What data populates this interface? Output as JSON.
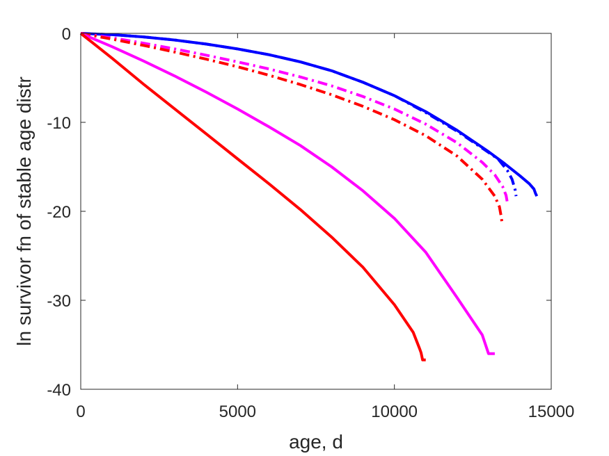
{
  "chart_data": {
    "type": "line",
    "title": "",
    "xlabel": "age, d",
    "ylabel": "ln survivor fn of stable age distr",
    "xlim": [
      0,
      15000
    ],
    "ylim": [
      -40,
      0
    ],
    "xticks": [
      0,
      5000,
      10000,
      15000
    ],
    "yticks": [
      0,
      -10,
      -20,
      -30,
      -40
    ],
    "xtick_labels": [
      "0",
      "5000",
      "10000",
      "15000"
    ],
    "ytick_labels": [
      "0",
      "-10",
      "-20",
      "-30",
      "-40"
    ],
    "grid": false,
    "box": true,
    "legend": "none",
    "series": [
      {
        "color": "#0000ff",
        "style": "solid",
        "x": [
          0,
          1000,
          2000,
          3000,
          4000,
          5000,
          6000,
          7000,
          8000,
          9000,
          10000,
          11000,
          12000,
          13000,
          13500,
          14000,
          14300,
          14450,
          14500,
          14540
        ],
        "y": [
          0,
          -0.15,
          -0.4,
          -0.75,
          -1.2,
          -1.75,
          -2.4,
          -3.2,
          -4.2,
          -5.5,
          -7.0,
          -8.8,
          -10.9,
          -13.3,
          -14.6,
          -16.0,
          -16.9,
          -17.5,
          -18.0,
          -18.3
        ]
      },
      {
        "color": "#0000ff",
        "style": "dashdot",
        "x": [
          0,
          1000,
          2000,
          3000,
          4000,
          5000,
          6000,
          7000,
          8000,
          9000,
          10000,
          11000,
          12000,
          12800,
          13300,
          13600,
          13750,
          13850,
          13880
        ],
        "y": [
          0,
          -0.15,
          -0.4,
          -0.75,
          -1.2,
          -1.75,
          -2.4,
          -3.2,
          -4.2,
          -5.5,
          -7.0,
          -8.9,
          -11.0,
          -12.9,
          -14.1,
          -15.4,
          -16.4,
          -17.6,
          -18.3
        ]
      },
      {
        "color": "#ff00ff",
        "style": "dashdot",
        "x": [
          0,
          1000,
          2000,
          3000,
          4000,
          5000,
          6000,
          7000,
          8000,
          9000,
          10000,
          11000,
          12000,
          12800,
          13200,
          13450,
          13560,
          13600
        ],
        "y": [
          0,
          -0.5,
          -1.1,
          -1.75,
          -2.45,
          -3.2,
          -4.0,
          -4.9,
          -5.9,
          -7.1,
          -8.5,
          -10.2,
          -12.3,
          -14.5,
          -15.9,
          -17.2,
          -18.2,
          -19.0
        ]
      },
      {
        "color": "#ff0000",
        "style": "dashdot",
        "x": [
          0,
          1000,
          2000,
          3000,
          4000,
          5000,
          6000,
          7000,
          8000,
          9000,
          10000,
          11000,
          12000,
          12800,
          13200,
          13350,
          13400,
          13440
        ],
        "y": [
          0,
          -0.65,
          -1.35,
          -2.1,
          -2.9,
          -3.75,
          -4.7,
          -5.75,
          -6.9,
          -8.2,
          -9.7,
          -11.5,
          -13.8,
          -16.4,
          -18.3,
          -19.5,
          -20.5,
          -21.5
        ]
      },
      {
        "color": "#ff00ff",
        "style": "solid",
        "x": [
          0,
          1000,
          2000,
          3000,
          4000,
          5000,
          6000,
          7000,
          8000,
          9000,
          10000,
          11000,
          12000,
          12800,
          13000,
          13200
        ],
        "y": [
          0,
          -1.5,
          -3.1,
          -4.8,
          -6.6,
          -8.5,
          -10.5,
          -12.6,
          -15.0,
          -17.7,
          -20.8,
          -24.6,
          -29.7,
          -33.9,
          -36.0,
          -36.0
        ]
      },
      {
        "color": "#ff0000",
        "style": "solid",
        "x": [
          0,
          1000,
          2000,
          3000,
          4000,
          5000,
          6000,
          7000,
          8000,
          9000,
          10000,
          10600,
          10800,
          10850,
          10900,
          11000
        ],
        "y": [
          0,
          -2.8,
          -5.7,
          -8.5,
          -11.3,
          -14.1,
          -16.9,
          -19.8,
          -22.9,
          -26.3,
          -30.5,
          -33.6,
          -35.4,
          -35.9,
          -36.7,
          -36.7
        ]
      }
    ]
  }
}
